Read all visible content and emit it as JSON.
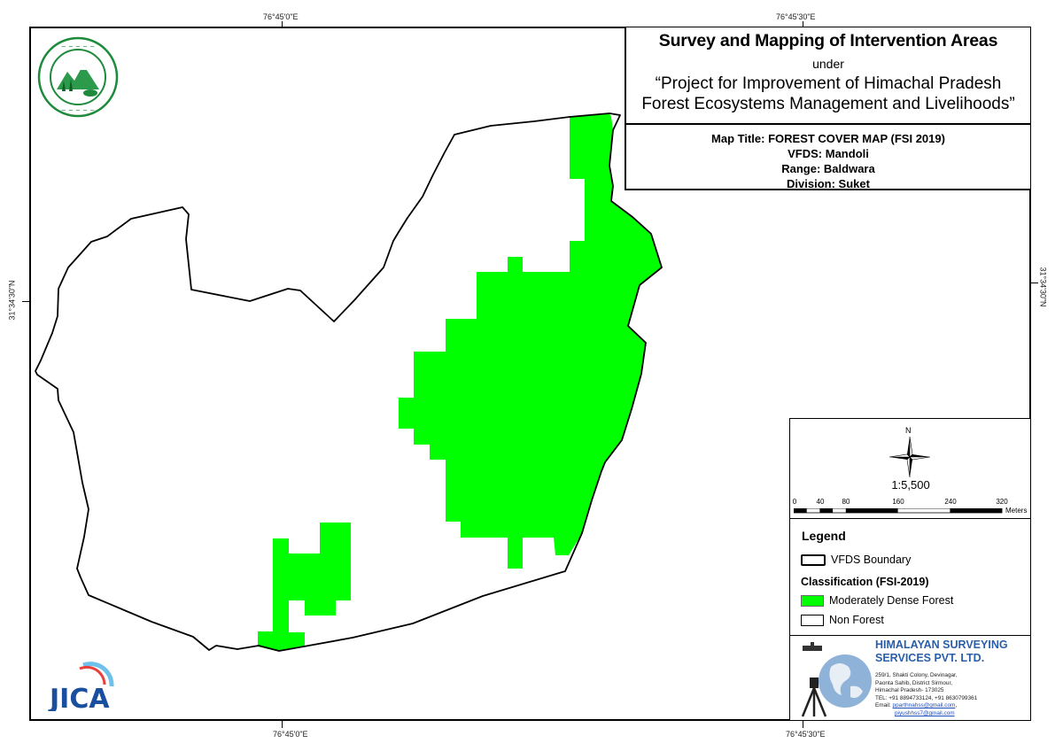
{
  "coordinates": {
    "top_left": "76°45'0\"E",
    "top_right": "76°45'30\"E",
    "bottom_left": "76°45'0\"E",
    "bottom_right": "76°45'30\"E",
    "left_lat": "31°34'30\"N",
    "right_lat": "31°34'30\"N"
  },
  "title": {
    "main": "Survey and Mapping of Intervention Areas",
    "under": "under",
    "project_line1": "“Project for Improvement of Himachal Pradesh",
    "project_line2": "Forest Ecosystems Management and Livelihoods”"
  },
  "map_info": {
    "map_title": "Map Title: FOREST COVER MAP (FSI 2019)",
    "vfds": "VFDS: Mandoli",
    "range": "Range: Baldwara",
    "division": "Division: Suket"
  },
  "north_label": "N",
  "scale": {
    "ratio": "1:5,500",
    "ticks": [
      "0",
      "40",
      "80",
      "160",
      "240",
      "320"
    ],
    "unit": "Meters"
  },
  "legend": {
    "title": "Legend",
    "boundary_label": "VFDS Boundary",
    "classification_title": "Classification (FSI-2019)",
    "mdf_label": "Moderately Dense Forest",
    "nonforest_label": "Non Forest"
  },
  "colors": {
    "moderately_dense_forest": "#00ff00",
    "boundary": "#000000",
    "company_text": "#2a5ea8",
    "logo_green": "#1e8a3c",
    "jica_blue": "#1a4fa0"
  },
  "company": {
    "name_line1": "HIMALAYAN SURVEYING",
    "name_line2": "SERVICES PVT. LTD.",
    "address": [
      "259/1, Shakti Colony, Devinagar,",
      "Paonta Sahib, District Sirmour,",
      "Himachal Pradesh- 173025",
      "TEL: +91 8894733124, +91 8630799361"
    ],
    "email_label": "Email:",
    "email1": "pparthnahss@gmail.com",
    "email2": "piyushhss7@gmail.com"
  },
  "logos": {
    "forest_dept": "forest-department-seal-icon",
    "jica": "JICA",
    "company": "surveyor-tripod-globe-icon"
  }
}
